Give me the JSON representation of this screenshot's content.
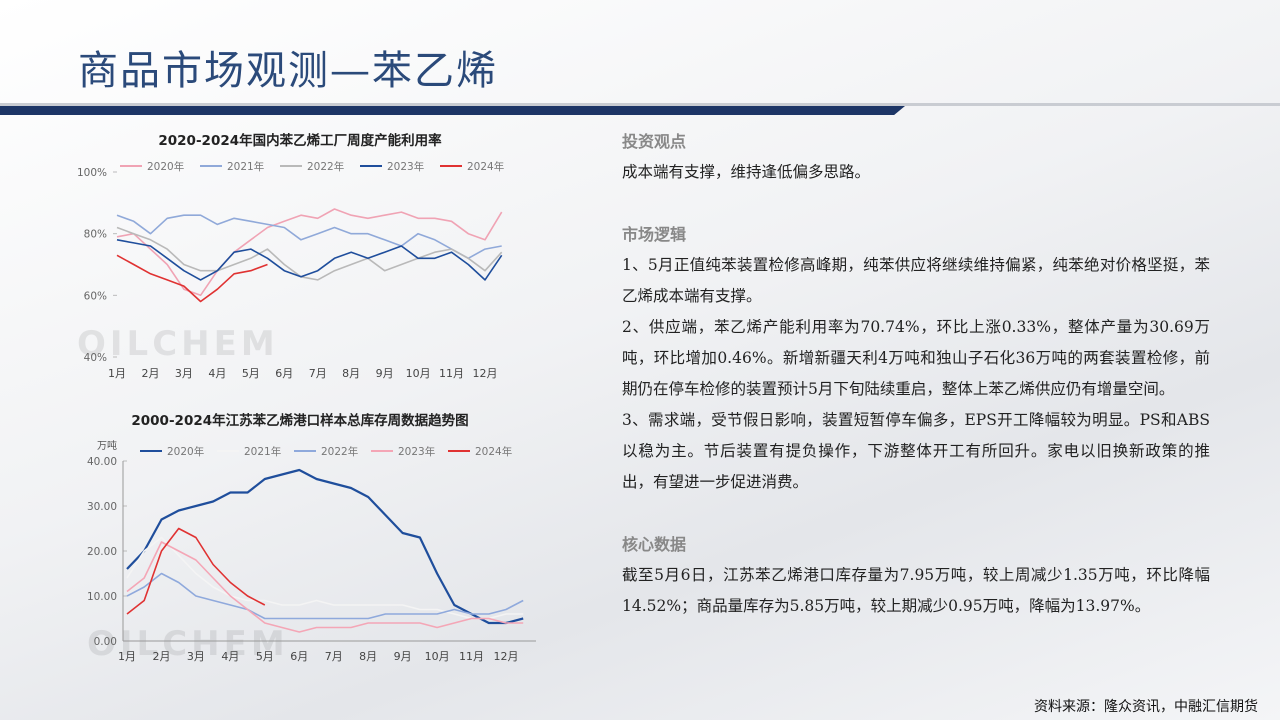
{
  "title": "商品市场观测—苯乙烯",
  "chart_data": [
    {
      "type": "line",
      "title": "2020-2024年国内苯乙烯工厂周度产能利用率",
      "watermark": "OILCHEM",
      "categories": [
        "1月",
        null,
        "2月",
        null,
        "3月",
        null,
        "4月",
        null,
        "5月",
        null,
        "6月",
        null,
        "7月",
        null,
        "8月",
        null,
        "9月",
        null,
        "10月",
        null,
        "11月",
        null,
        "12月",
        null
      ],
      "ylim": [
        40,
        100
      ],
      "yticks": [
        {
          "value": 40,
          "label": "40%"
        },
        {
          "value": 60,
          "label": "60%"
        },
        {
          "value": 80,
          "label": "80%"
        },
        {
          "value": 100,
          "label": "100%"
        }
      ],
      "grid": false,
      "series": [
        {
          "name": "2020年",
          "color": "#f0a3b4",
          "values": [
            79,
            80,
            75,
            70,
            62,
            60,
            68,
            74,
            78,
            82,
            84,
            86,
            85,
            88,
            86,
            85,
            86,
            87,
            85,
            85,
            84,
            80,
            78,
            87
          ]
        },
        {
          "name": "2021年",
          "color": "#90a9d9",
          "values": [
            86,
            84,
            80,
            85,
            86,
            86,
            83,
            85,
            84,
            83,
            82,
            78,
            80,
            82,
            80,
            80,
            78,
            76,
            80,
            78,
            75,
            72,
            75,
            76
          ]
        },
        {
          "name": "2022年",
          "color": "#b9b9b9",
          "values": [
            82,
            80,
            78,
            75,
            70,
            68,
            68,
            70,
            72,
            75,
            70,
            66,
            65,
            68,
            70,
            72,
            68,
            70,
            72,
            74,
            75,
            72,
            68,
            74
          ]
        },
        {
          "name": "2023年",
          "color": "#1f4e9c",
          "values": [
            78,
            77,
            76,
            72,
            68,
            65,
            68,
            74,
            75,
            72,
            68,
            66,
            68,
            72,
            74,
            72,
            74,
            76,
            72,
            72,
            74,
            70,
            65,
            73
          ]
        },
        {
          "name": "2024年",
          "color": "#e03232",
          "values": [
            73,
            70,
            67,
            65,
            63,
            58,
            62,
            67,
            68,
            70,
            null,
            null,
            null,
            null,
            null,
            null,
            null,
            null,
            null,
            null,
            null,
            null,
            null,
            null
          ]
        }
      ]
    },
    {
      "type": "line",
      "title": "2000-2024年江苏苯乙烯港口样本总库存周数据趋势图",
      "watermark": "OILCHEM",
      "unit": "万吨",
      "categories": [
        "1月",
        null,
        "2月",
        null,
        "3月",
        null,
        "4月",
        null,
        "5月",
        null,
        "6月",
        null,
        "7月",
        null,
        "8月",
        null,
        "9月",
        null,
        "10月",
        null,
        "11月",
        null,
        "12月",
        null
      ],
      "ylim": [
        0,
        40
      ],
      "yticks": [
        {
          "value": 0,
          "label": "0.00"
        },
        {
          "value": 10,
          "label": "10.00"
        },
        {
          "value": 20,
          "label": "20.00"
        },
        {
          "value": 30,
          "label": "30.00"
        },
        {
          "value": 40,
          "label": "40.00"
        }
      ],
      "grid": false,
      "series": [
        {
          "name": "2020年",
          "color": "#1f4e9c",
          "values": [
            16,
            20,
            27,
            29,
            30,
            31,
            33,
            33,
            36,
            37,
            38,
            36,
            35,
            34,
            32,
            28,
            24,
            23,
            15,
            8,
            6,
            4,
            4,
            5
          ]
        },
        {
          "name": "2021年",
          "color": "#f4f4f4",
          "values": [
            14,
            20,
            23,
            19,
            15,
            12,
            10,
            9,
            9,
            8,
            8,
            9,
            8,
            8,
            8,
            8,
            8,
            7,
            7,
            6,
            5,
            5,
            6,
            6
          ]
        },
        {
          "name": "2022年",
          "color": "#8fa9dc",
          "values": [
            10,
            12,
            15,
            13,
            10,
            9,
            8,
            7,
            5,
            5,
            5,
            5,
            5,
            5,
            5,
            6,
            6,
            6,
            6,
            7,
            6,
            6,
            7,
            9
          ]
        },
        {
          "name": "2023年",
          "color": "#f4a6b6",
          "values": [
            11,
            14,
            22,
            20,
            18,
            14,
            10,
            7,
            4,
            3,
            2,
            3,
            3,
            3,
            4,
            4,
            4,
            4,
            3,
            4,
            5,
            5,
            4,
            4
          ]
        },
        {
          "name": "2024年",
          "color": "#e03232",
          "values": [
            6,
            9,
            20,
            25,
            23,
            17,
            13,
            10,
            8,
            null,
            null,
            null,
            null,
            null,
            null,
            null,
            null,
            null,
            null,
            null,
            null,
            null,
            null,
            null
          ]
        }
      ]
    }
  ],
  "text": {
    "sections": [
      {
        "heading": "投资观点",
        "paragraphs": [
          "成本端有支撑，维持逢低偏多思路。"
        ]
      },
      {
        "heading": "市场逻辑",
        "paragraphs": [
          "1、5月正值纯苯装置检修高峰期，纯苯供应将继续维持偏紧，纯苯绝对价格坚挺，苯乙烯成本端有支撑。",
          "2、供应端，苯乙烯产能利用率为70.74%，环比上涨0.33%，整体产量为30.69万吨，环比增加0.46%。新增新疆天利4万吨和独山子石化36万吨的两套装置检修，前期仍在停车检修的装置预计5月下旬陆续重启，整体上苯乙烯供应仍有增量空间。",
          "3、需求端，受节假日影响，装置短暂停车偏多，EPS开工降幅较为明显。PS和ABS以稳为主。节后装置有提负操作，下游整体开工有所回升。家电以旧换新政策的推出，有望进一步促进消费。"
        ]
      },
      {
        "heading": "核心数据",
        "paragraphs": [
          "截至5月6日，江苏苯乙烯港口库存量为7.95万吨，较上周减少1.35万吨，环比降幅14.52%；商品量库存为5.85万吨，较上期减少0.95万吨，降幅为13.97%。"
        ]
      }
    ]
  },
  "source": "资料来源：隆众资讯，中融汇信期货"
}
